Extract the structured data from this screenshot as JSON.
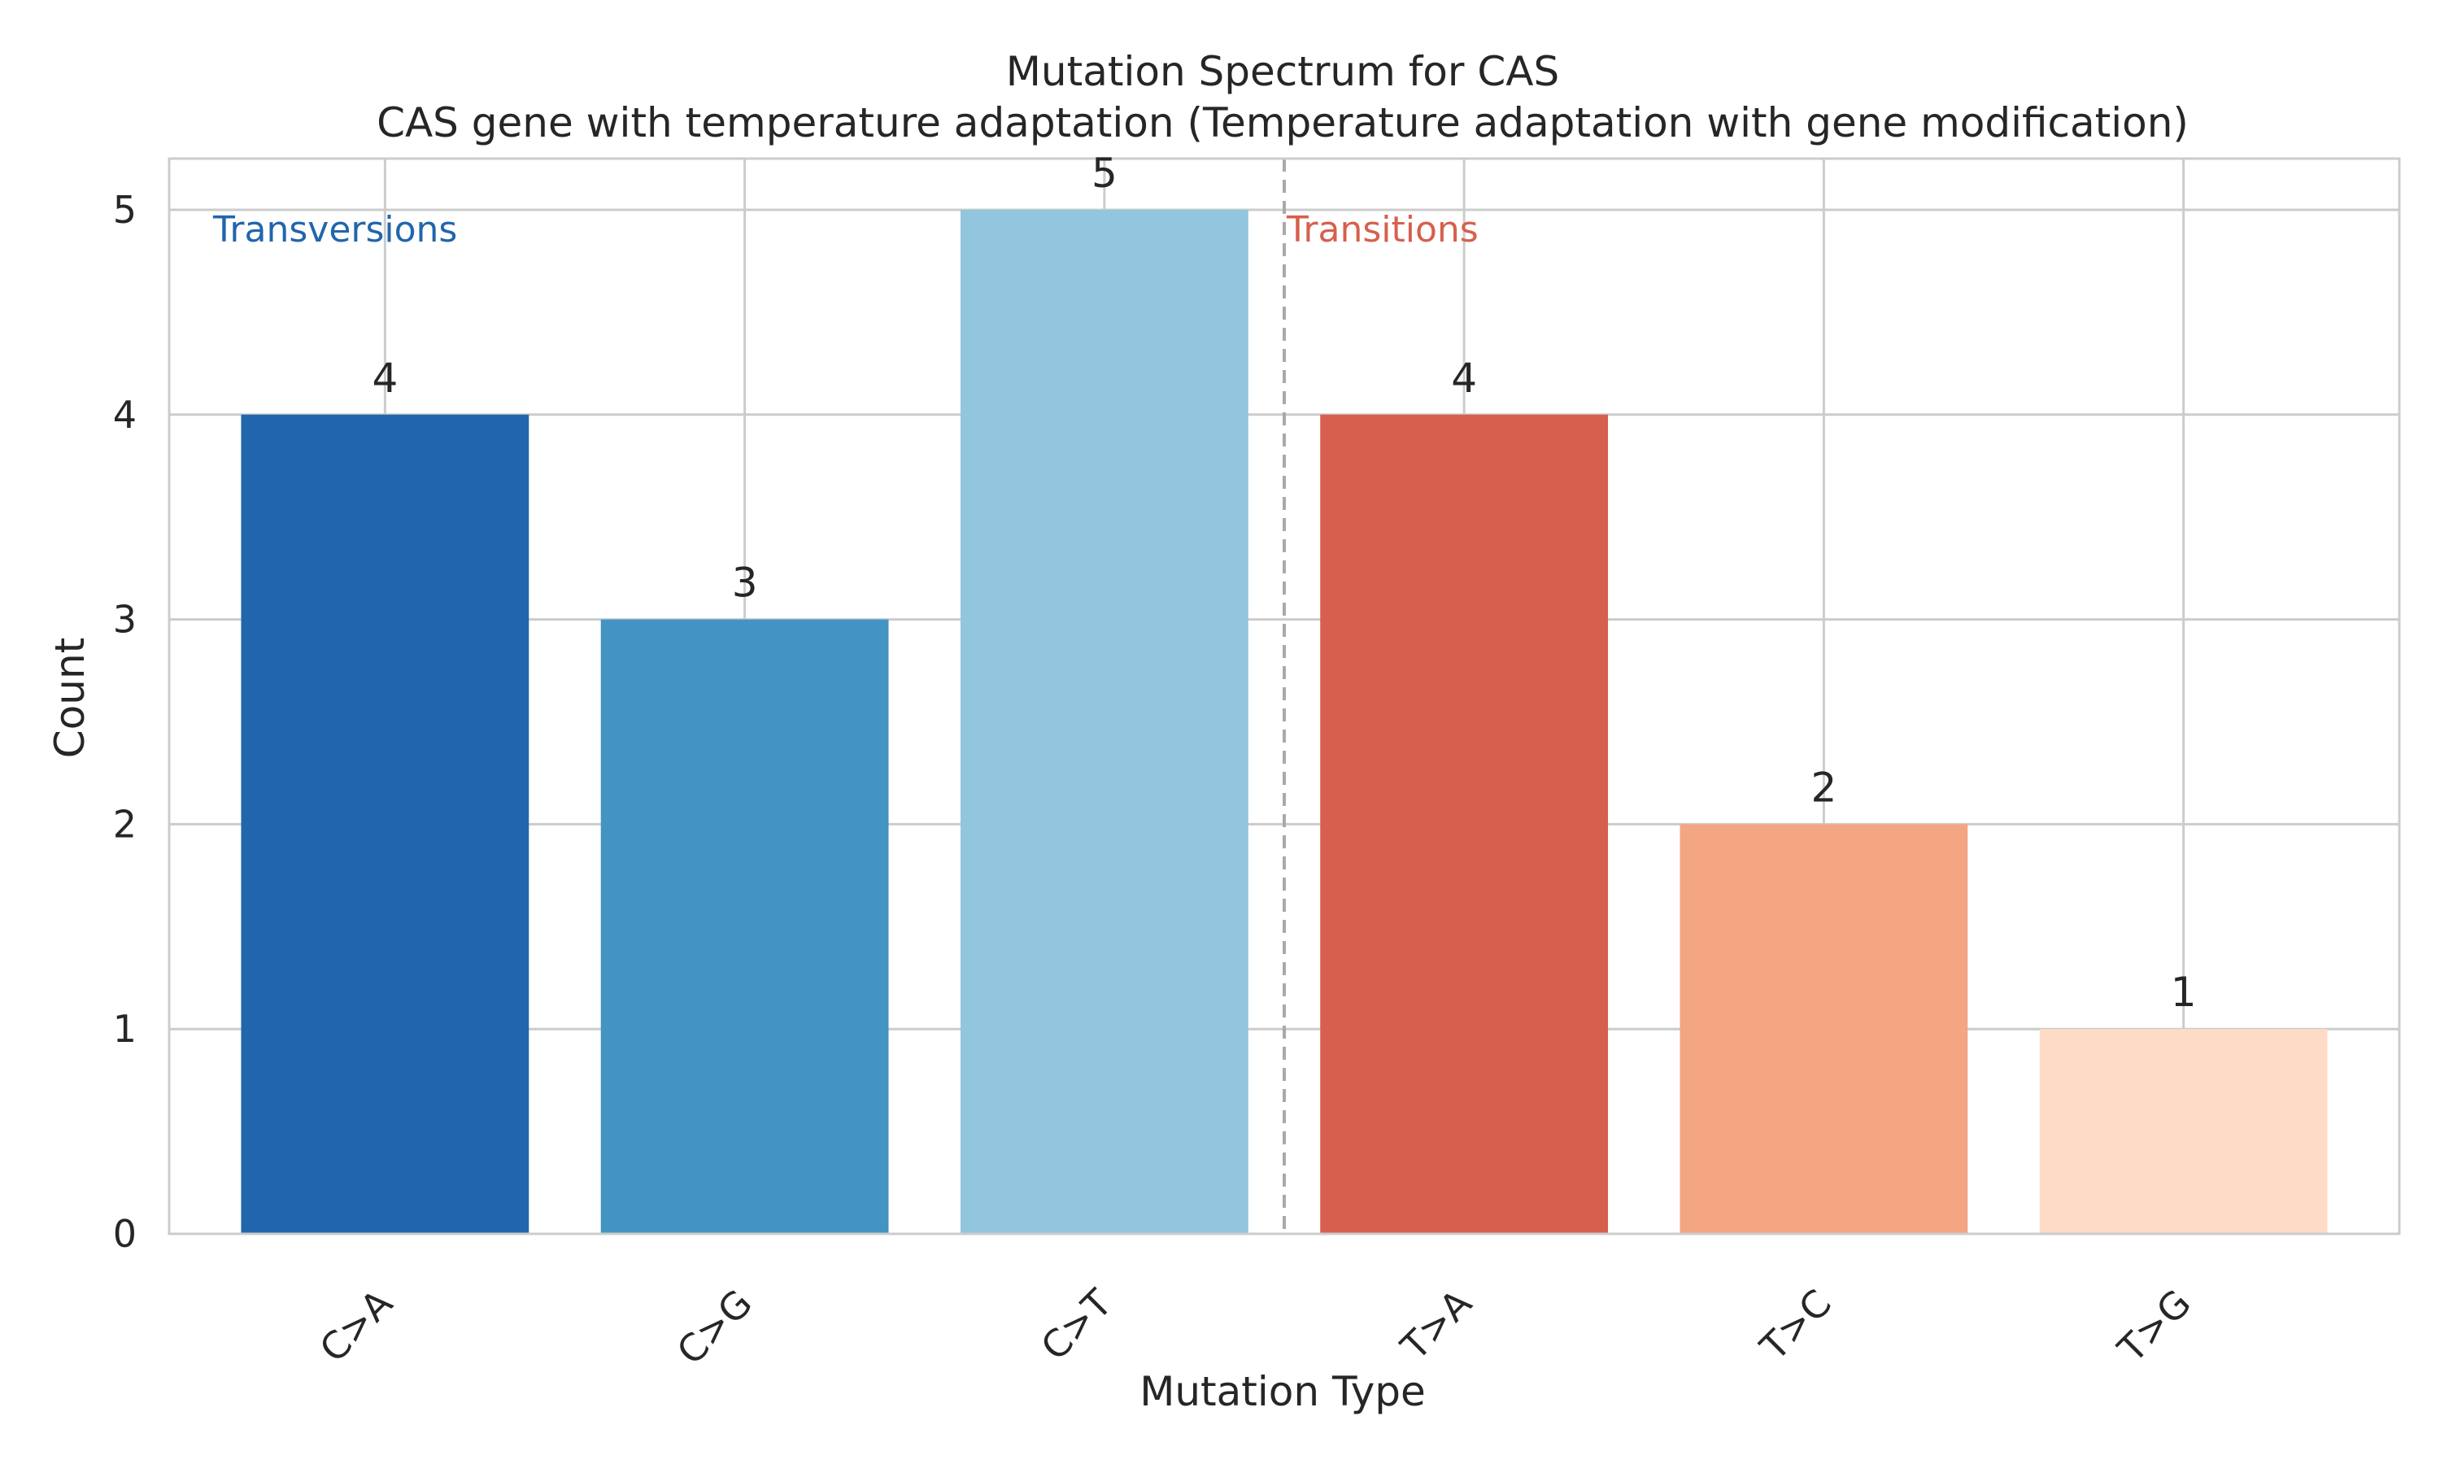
{
  "chart_data": {
    "type": "bar",
    "title": "Mutation Spectrum for CAS",
    "subtitle": "CAS gene with temperature adaptation (Temperature adaptation with gene modification)",
    "xlabel": "Mutation Type",
    "ylabel": "Count",
    "categories": [
      "C>A",
      "C>G",
      "C>T",
      "T>A",
      "T>C",
      "T>G"
    ],
    "values": [
      4,
      3,
      5,
      4,
      2,
      1
    ],
    "bar_colors": [
      "#2166ac",
      "#4393c3",
      "#92c5de",
      "#d6604d",
      "#f4a582",
      "#fddbc7"
    ],
    "ylim": [
      0,
      5.25
    ],
    "yticks": [
      0,
      1,
      2,
      3,
      4,
      5
    ],
    "grid": true,
    "annotations": [
      {
        "text": "Transversions",
        "color": "#2166ac"
      },
      {
        "text": "Transitions",
        "color": "#d6604d"
      }
    ],
    "divider_between": [
      2,
      3
    ],
    "divider_color": "#a9a9a9",
    "grid_color": "#cccccc",
    "text_color": "#262626"
  }
}
